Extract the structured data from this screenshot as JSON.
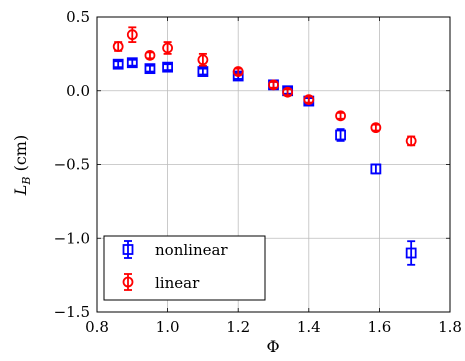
{
  "chart_data": {
    "type": "scatter",
    "title": "",
    "xlabel": "Φ",
    "ylabel_main": "L",
    "ylabel_sub": "B",
    "ylabel_unit": " (cm)",
    "xlim": [
      0.8,
      1.8
    ],
    "ylim": [
      -1.5,
      0.5
    ],
    "xticks": [
      0.8,
      1.0,
      1.2,
      1.4,
      1.6,
      1.8
    ],
    "xtick_labels": [
      "0.8",
      "1.0",
      "1.2",
      "1.4",
      "1.6",
      "1.8"
    ],
    "yticks": [
      -1.5,
      -1.0,
      -0.5,
      0.0,
      0.5
    ],
    "ytick_labels": [
      "−1.5",
      "−1.0",
      "−0.5",
      "0.0",
      "0.5"
    ],
    "grid": true,
    "legend_position": "bottom-left",
    "series": [
      {
        "name": "nonlinear",
        "color": "#0000ff",
        "marker": "square",
        "points": [
          {
            "x": 0.86,
            "y": 0.18,
            "err": 0.02
          },
          {
            "x": 0.9,
            "y": 0.19,
            "err": 0.02
          },
          {
            "x": 0.95,
            "y": 0.15,
            "err": 0.02
          },
          {
            "x": 1.0,
            "y": 0.16,
            "err": 0.02
          },
          {
            "x": 1.1,
            "y": 0.13,
            "err": 0.02
          },
          {
            "x": 1.2,
            "y": 0.1,
            "err": 0.02
          },
          {
            "x": 1.3,
            "y": 0.04,
            "err": 0.02
          },
          {
            "x": 1.34,
            "y": 0.0,
            "err": 0.02
          },
          {
            "x": 1.4,
            "y": -0.07,
            "err": 0.02
          },
          {
            "x": 1.49,
            "y": -0.3,
            "err": 0.04
          },
          {
            "x": 1.59,
            "y": -0.53,
            "err": 0.03
          },
          {
            "x": 1.69,
            "y": -1.1,
            "err": 0.08
          }
        ]
      },
      {
        "name": "linear",
        "color": "#ff0000",
        "marker": "circle",
        "points": [
          {
            "x": 0.86,
            "y": 0.3,
            "err": 0.03
          },
          {
            "x": 0.9,
            "y": 0.38,
            "err": 0.05
          },
          {
            "x": 0.95,
            "y": 0.24,
            "err": 0.02
          },
          {
            "x": 1.0,
            "y": 0.29,
            "err": 0.04
          },
          {
            "x": 1.1,
            "y": 0.21,
            "err": 0.04
          },
          {
            "x": 1.2,
            "y": 0.13,
            "err": 0.02
          },
          {
            "x": 1.3,
            "y": 0.04,
            "err": 0.02
          },
          {
            "x": 1.34,
            "y": -0.01,
            "err": 0.02
          },
          {
            "x": 1.4,
            "y": -0.06,
            "err": 0.02
          },
          {
            "x": 1.49,
            "y": -0.17,
            "err": 0.02
          },
          {
            "x": 1.59,
            "y": -0.25,
            "err": 0.02
          },
          {
            "x": 1.69,
            "y": -0.34,
            "err": 0.03
          }
        ]
      }
    ]
  }
}
